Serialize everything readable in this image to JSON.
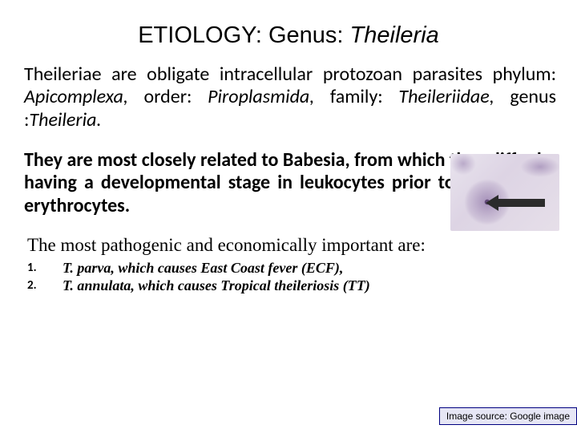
{
  "title": {
    "prefix": "ETIOLOGY: Genus: ",
    "italic": "Theileria"
  },
  "para1": {
    "lead": "Theileriae are obligate intracellular protozoan parasites phylum: ",
    "tax1": "Apicomplexa,",
    "mid1": " order: ",
    "tax2": "Piroplasmida,",
    "mid2": " family: ",
    "tax3": "Theileriidae,",
    "mid3": " genus :",
    "tax4": "Theileria."
  },
  "para2": "They are most closely related to Babesia, from which they differ by having a developmental stage in leukocytes prior to infection of erythrocytes.",
  "subhead": "The most pathogenic and economically important are:",
  "list": [
    {
      "num": "1.",
      "text": "T. parva, which causes East Coast fever (ECF),"
    },
    {
      "num": "2.",
      "text": "T. annulata, which causes Tropical theileriosis (TT)"
    }
  ],
  "source": "Image source: Google image",
  "colors": {
    "title": "#000000",
    "body": "#000000",
    "source_border": "#000080",
    "source_bg": "#e6e6f5",
    "arrow": "#2b2b2b"
  },
  "micrograph": {
    "description": "microscope-cell-image",
    "arrow_points": "left"
  }
}
